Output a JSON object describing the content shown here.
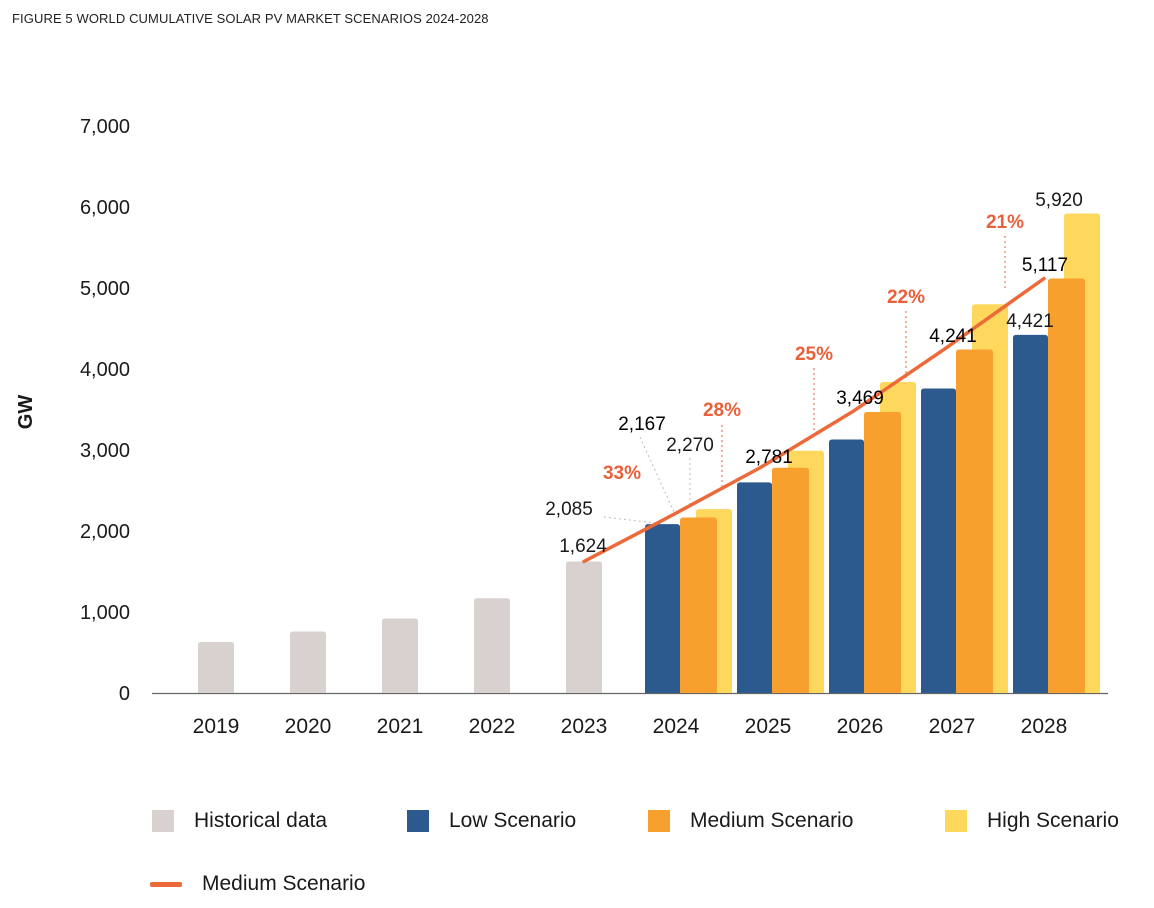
{
  "figure_title": "FIGURE 5 WORLD CUMULATIVE SOLAR PV MARKET SCENARIOS 2024-2028",
  "colors": {
    "historical": "#d9d1cf",
    "low": "#2d5a8e",
    "medium": "#f7a02d",
    "high": "#fed85d",
    "line": "#ec6a3a",
    "growth_text": "#e8613a",
    "axis": "#555555"
  },
  "legend": [
    {
      "key": "historical",
      "label": "Historical data",
      "kind": "box"
    },
    {
      "key": "low",
      "label": "Low Scenario",
      "kind": "box"
    },
    {
      "key": "medium",
      "label": "Medium Scenario",
      "kind": "box"
    },
    {
      "key": "high",
      "label": "High Scenario",
      "kind": "box"
    },
    {
      "key": "line",
      "label": "Medium Scenario",
      "kind": "line"
    }
  ],
  "chart_data": {
    "type": "bar",
    "title": "FIGURE 5 WORLD CUMULATIVE SOLAR PV MARKET SCENARIOS 2024-2028",
    "ylabel": "GW",
    "xlabel": "",
    "ylim": [
      0,
      7000
    ],
    "yticks": [
      "0",
      "1,000",
      "2,000",
      "3,000",
      "4,000",
      "5,000",
      "6,000",
      "7,000"
    ],
    "categories": [
      "2019",
      "2020",
      "2021",
      "2022",
      "2023",
      "2024",
      "2025",
      "2026",
      "2027",
      "2028"
    ],
    "series": [
      {
        "name": "Historical data",
        "key": "historical",
        "values": [
          630,
          760,
          920,
          1170,
          1624,
          null,
          null,
          null,
          null,
          null
        ]
      },
      {
        "name": "Low Scenario",
        "key": "low",
        "values": [
          null,
          null,
          null,
          null,
          null,
          2085,
          2600,
          3130,
          3760,
          4421
        ]
      },
      {
        "name": "Medium Scenario",
        "key": "medium",
        "values": [
          null,
          null,
          null,
          null,
          null,
          2167,
          2781,
          3469,
          4241,
          5117
        ]
      },
      {
        "name": "High Scenario",
        "key": "high",
        "values": [
          null,
          null,
          null,
          null,
          null,
          2270,
          2990,
          3840,
          4800,
          5920
        ]
      }
    ],
    "line": {
      "name": "Medium Scenario",
      "x": [
        "2023",
        "2024",
        "2025",
        "2026",
        "2027",
        "2028"
      ],
      "values": [
        1624,
        2167,
        2781,
        3469,
        4241,
        5117
      ]
    },
    "data_labels": [
      {
        "text": "1,624",
        "category": "2023",
        "series": "historical"
      },
      {
        "text": "2,085",
        "category": "2024",
        "series": "low"
      },
      {
        "text": "2,167",
        "category": "2024",
        "series": "medium"
      },
      {
        "text": "2,270",
        "category": "2024",
        "series": "high"
      },
      {
        "text": "2,781",
        "category": "2025",
        "series": "medium"
      },
      {
        "text": "3,469",
        "category": "2026",
        "series": "medium"
      },
      {
        "text": "4,241",
        "category": "2027",
        "series": "medium"
      },
      {
        "text": "4,421",
        "category": "2028",
        "series": "low"
      },
      {
        "text": "5,117",
        "category": "2028",
        "series": "medium"
      },
      {
        "text": "5,920",
        "category": "2028",
        "series": "high"
      }
    ],
    "growth_labels": [
      {
        "text": "33%",
        "category": "2024"
      },
      {
        "text": "28%",
        "category": "2025"
      },
      {
        "text": "25%",
        "category": "2026"
      },
      {
        "text": "22%",
        "category": "2027"
      },
      {
        "text": "21%",
        "category": "2028"
      }
    ],
    "grid": false,
    "legend_position": "bottom"
  }
}
